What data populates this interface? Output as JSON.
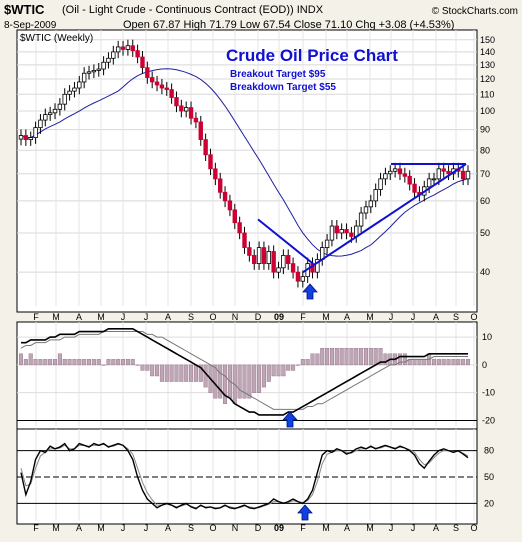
{
  "header": {
    "symbol": "$WTIC",
    "description": "(Oil - Light Crude - Continuous Contract (EOD))  INDX",
    "date": "8-Sep-2009",
    "ohlc": "Open 67.87  High 71.79  Low 67.54  Close 71.10  Chg +3.08 (+4.53%)",
    "brand": "© StockCharts.com"
  },
  "chart_data": [
    {
      "type": "candlestick",
      "legend": "$WTIC (Weekly)",
      "title": "Crude Oil Price Chart",
      "annotations": [
        "Breakout Target $95",
        "Breakdown Target $55"
      ],
      "yscale": "log",
      "ylim": [
        33,
        155
      ],
      "yticks": [
        40,
        50,
        60,
        70,
        80,
        90,
        100,
        110,
        120,
        130,
        140,
        150
      ],
      "xticks": [
        "F",
        "M",
        "A",
        "M",
        "J",
        "J",
        "A",
        "S",
        "O",
        "N",
        "D",
        "09",
        "F",
        "M",
        "A",
        "M",
        "J",
        "J",
        "A",
        "S",
        "O"
      ],
      "closes": [
        87,
        85,
        86,
        91,
        95,
        98,
        99,
        101,
        104,
        110,
        112,
        114,
        118,
        124,
        125,
        126,
        127,
        132,
        135,
        140,
        144,
        142,
        145,
        141,
        136,
        128,
        121,
        118,
        116,
        114,
        113,
        108,
        103,
        100,
        102,
        96,
        94,
        85,
        78,
        72,
        68,
        63,
        60,
        57,
        53,
        50,
        46,
        44,
        42,
        46,
        42,
        45,
        40,
        41,
        44,
        42,
        40,
        38,
        39,
        42,
        40,
        43,
        46,
        48,
        52,
        50,
        51,
        50,
        49,
        52,
        56,
        58,
        60,
        64,
        68,
        70,
        71,
        72,
        70,
        69,
        66,
        63,
        62,
        65,
        68,
        68,
        72,
        71,
        70,
        72,
        71,
        68,
        71
      ],
      "moving_average": "40-week",
      "lines": [
        {
          "name": "resistance",
          "from": {
            "x": "Jun 2009",
            "y": 74
          },
          "to": {
            "x": "Sep 2009",
            "y": 74
          }
        },
        {
          "name": "wedge-top",
          "from": {
            "x": "Dec 2008",
            "y": 54
          },
          "to": {
            "x": "Feb 2009",
            "y": 42
          }
        },
        {
          "name": "support",
          "from": {
            "x": "Feb 2009",
            "y": 40
          },
          "to": {
            "x": "Sep 2009",
            "y": 74
          }
        }
      ],
      "signals": [
        {
          "x": "Feb 2009",
          "kind": "buy-arrow"
        }
      ]
    },
    {
      "type": "macd",
      "ylim": [
        -22,
        14
      ],
      "yticks": [
        10,
        0,
        -10,
        -20
      ],
      "reference_line": -20,
      "macd": [
        8,
        8,
        9,
        9,
        9,
        9,
        10,
        10,
        11,
        11,
        11,
        11,
        12,
        12,
        12,
        12,
        12,
        12,
        13,
        13,
        13,
        13,
        13,
        13,
        12,
        11,
        10,
        9,
        8,
        7,
        6,
        5,
        4,
        3,
        2,
        1,
        0,
        -1,
        -3,
        -5,
        -7,
        -9,
        -11,
        -12,
        -14,
        -15,
        -16,
        -17,
        -17,
        -18,
        -18,
        -18,
        -18,
        -18,
        -18,
        -17,
        -17,
        -16,
        -15,
        -14,
        -13,
        -12,
        -11,
        -10,
        -9,
        -8,
        -7,
        -6,
        -5,
        -4,
        -3,
        -2,
        -1,
        0,
        1,
        1,
        2,
        2,
        3,
        3,
        3,
        3,
        3,
        3,
        4,
        4,
        4,
        4,
        4,
        4,
        4,
        4,
        4
      ],
      "signal": [
        6,
        7,
        7,
        8,
        8,
        8,
        9,
        9,
        9,
        10,
        10,
        10,
        11,
        11,
        11,
        11,
        11,
        12,
        12,
        12,
        12,
        12,
        12,
        12,
        12,
        12,
        11,
        11,
        10,
        10,
        9,
        8,
        7,
        6,
        5,
        4,
        3,
        2,
        1,
        0,
        -1,
        -3,
        -4,
        -6,
        -7,
        -9,
        -10,
        -11,
        -12,
        -13,
        -14,
        -15,
        -16,
        -16,
        -16,
        -16,
        -16,
        -16,
        -16,
        -15,
        -15,
        -14,
        -14,
        -13,
        -12,
        -11,
        -10,
        -9,
        -8,
        -7,
        -6,
        -5,
        -4,
        -3,
        -2,
        -1,
        0,
        0,
        1,
        1,
        2,
        2,
        2,
        2,
        2,
        3,
        3,
        3,
        3,
        3,
        3,
        3,
        3
      ],
      "signals": [
        {
          "x": "Feb 2009",
          "kind": "buy-arrow"
        }
      ]
    },
    {
      "type": "stochastic",
      "ylim": [
        0,
        100
      ],
      "yticks": [
        80,
        50,
        20
      ],
      "reference_lines": [
        80,
        50,
        20
      ],
      "k": [
        55,
        30,
        45,
        70,
        80,
        78,
        85,
        82,
        84,
        88,
        80,
        82,
        88,
        86,
        84,
        88,
        86,
        88,
        84,
        86,
        88,
        86,
        80,
        70,
        50,
        35,
        25,
        20,
        15,
        18,
        20,
        18,
        15,
        18,
        20,
        16,
        14,
        18,
        15,
        16,
        14,
        15,
        18,
        15,
        14,
        16,
        18,
        15,
        14,
        16,
        18,
        20,
        25,
        22,
        20,
        22,
        25,
        22,
        20,
        25,
        35,
        55,
        75,
        80,
        78,
        82,
        80,
        76,
        78,
        82,
        84,
        82,
        85,
        82,
        84,
        86,
        84,
        82,
        85,
        83,
        80,
        75,
        65,
        60,
        68,
        75,
        80,
        82,
        80,
        78,
        80,
        76,
        72
      ],
      "d": [
        60,
        40,
        42,
        60,
        74,
        78,
        82,
        82,
        83,
        86,
        82,
        82,
        86,
        86,
        85,
        86,
        86,
        87,
        85,
        85,
        87,
        86,
        82,
        76,
        60,
        44,
        32,
        24,
        18,
        18,
        19,
        18,
        16,
        17,
        19,
        17,
        15,
        17,
        16,
        16,
        15,
        15,
        17,
        16,
        15,
        15,
        17,
        16,
        15,
        15,
        17,
        19,
        22,
        22,
        21,
        21,
        23,
        22,
        21,
        23,
        30,
        45,
        65,
        76,
        78,
        80,
        80,
        78,
        77,
        80,
        82,
        82,
        84,
        83,
        83,
        85,
        84,
        83,
        84,
        83,
        81,
        78,
        70,
        64,
        66,
        72,
        77,
        80,
        80,
        79,
        79,
        77,
        74
      ],
      "signals": [
        {
          "x": "Feb 2009",
          "kind": "buy-arrow"
        }
      ]
    }
  ]
}
